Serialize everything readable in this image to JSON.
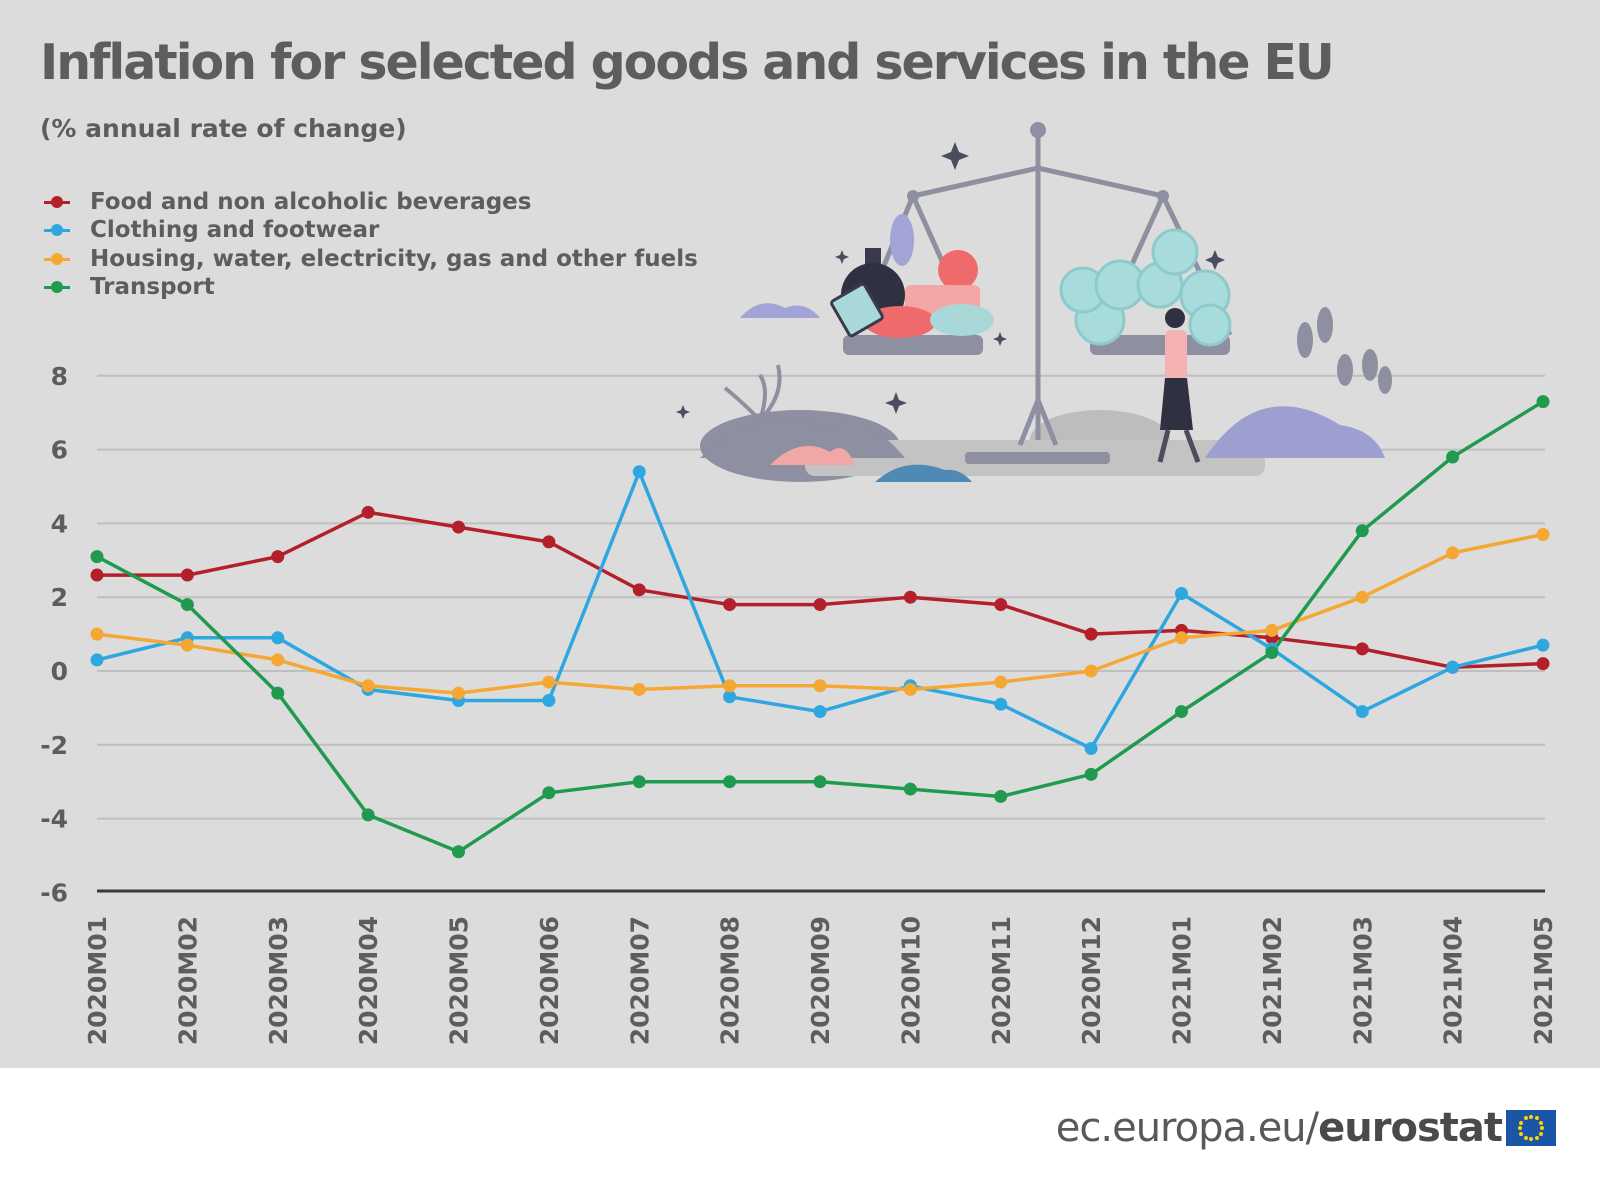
{
  "title": "Inflation for selected goods and services in the EU",
  "subtitle": "(% annual rate of change)",
  "footer": {
    "domain": "ec.europa.eu/",
    "brand": "eurostat"
  },
  "colors": {
    "background": "#dcdcdc",
    "grid": "#bfbfbf",
    "axis": "#3a3a3a",
    "text": "#5d5d5f"
  },
  "chart_data": {
    "type": "line",
    "title": "Inflation for selected goods and services in the EU",
    "subtitle": "(% annual rate of change)",
    "x": [
      "2020M01",
      "2020M02",
      "2020M03",
      "2020M04",
      "2020M05",
      "2020M06",
      "2020M07",
      "2020M08",
      "2020M09",
      "2020M10",
      "2020M11",
      "2020M12",
      "2021M01",
      "2021M02",
      "2021M03",
      "2021M04",
      "2021M05"
    ],
    "yticks": [
      8,
      6,
      4,
      2,
      0,
      -2,
      -4,
      -6
    ],
    "ylim": [
      -6,
      8
    ],
    "grid": true,
    "legend": "top-left",
    "series": [
      {
        "name": "Food and non alcoholic beverages",
        "color": "#b3202a",
        "values": [
          2.6,
          2.6,
          3.1,
          4.3,
          3.9,
          3.5,
          2.2,
          1.8,
          1.8,
          2.0,
          1.8,
          1.0,
          1.1,
          0.9,
          0.6,
          0.1,
          0.2
        ]
      },
      {
        "name": "Clothing and footwear",
        "color": "#2ea7e0",
        "values": [
          0.3,
          0.9,
          0.9,
          -0.5,
          -0.8,
          -0.8,
          5.4,
          -0.7,
          -1.1,
          -0.4,
          -0.9,
          -2.1,
          2.1,
          0.6,
          -1.1,
          0.1,
          0.7
        ]
      },
      {
        "name": "Housing, water, electricity, gas and other fuels",
        "color": "#f5a733",
        "values": [
          1.0,
          0.7,
          0.3,
          -0.4,
          -0.6,
          -0.3,
          -0.5,
          -0.4,
          -0.4,
          -0.5,
          -0.3,
          0.0,
          0.9,
          1.1,
          2.0,
          3.2,
          3.7
        ]
      },
      {
        "name": "Transport",
        "color": "#1f9a4f",
        "values": [
          3.1,
          1.8,
          -0.6,
          -3.9,
          -4.9,
          -3.3,
          -3.0,
          -3.0,
          -3.0,
          -3.2,
          -3.4,
          -2.8,
          -1.1,
          0.5,
          3.8,
          5.8,
          7.3
        ]
      }
    ]
  }
}
